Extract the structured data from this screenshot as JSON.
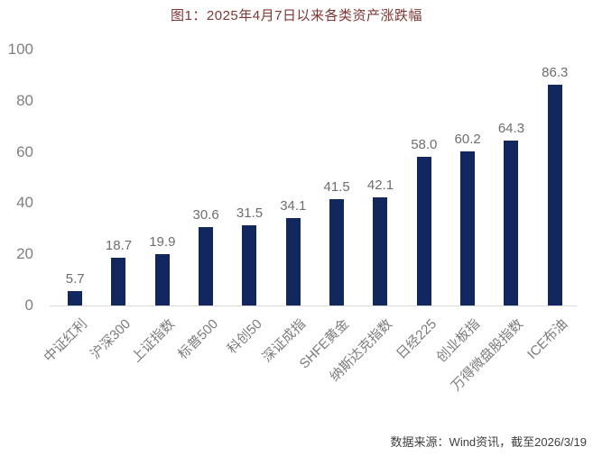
{
  "title": "图1：2025年4月7日以来各类资产涨跌幅",
  "footer": "数据来源：Wind资讯，截至2026/3/19",
  "colors": {
    "title": "#7f3531",
    "bar": "#13275f",
    "value_label": "#6e6e6e",
    "axis_tick": "#7f7f7f",
    "category_label": "#7c7c7c",
    "axis_line": "#d9d9d9",
    "footer": "#3f3f3f",
    "background": "#ffffff"
  },
  "chart_data": {
    "type": "bar",
    "title": "图1：2025年4月7日以来各类资产涨跌幅",
    "categories": [
      "中证红利",
      "沪深300",
      "上证指数",
      "标普500",
      "科创50",
      "深证成指",
      "SHFE黄金",
      "纳斯达克指数",
      "日经225",
      "创业板指",
      "万得微盘股指数",
      "ICE布油"
    ],
    "values": [
      5.7,
      18.7,
      19.9,
      30.6,
      31.5,
      34.1,
      41.5,
      42.1,
      58.0,
      60.2,
      64.3,
      86.3
    ],
    "value_label_decimals": 1,
    "xlabel": "",
    "ylabel": "",
    "ylim": [
      0,
      100
    ],
    "yticks": [
      0,
      20,
      40,
      60,
      80,
      100
    ],
    "grid": false,
    "legend": "none",
    "bar_color": "#13275f",
    "source_note": "数据来源：Wind资讯，截至2026/3/19"
  }
}
